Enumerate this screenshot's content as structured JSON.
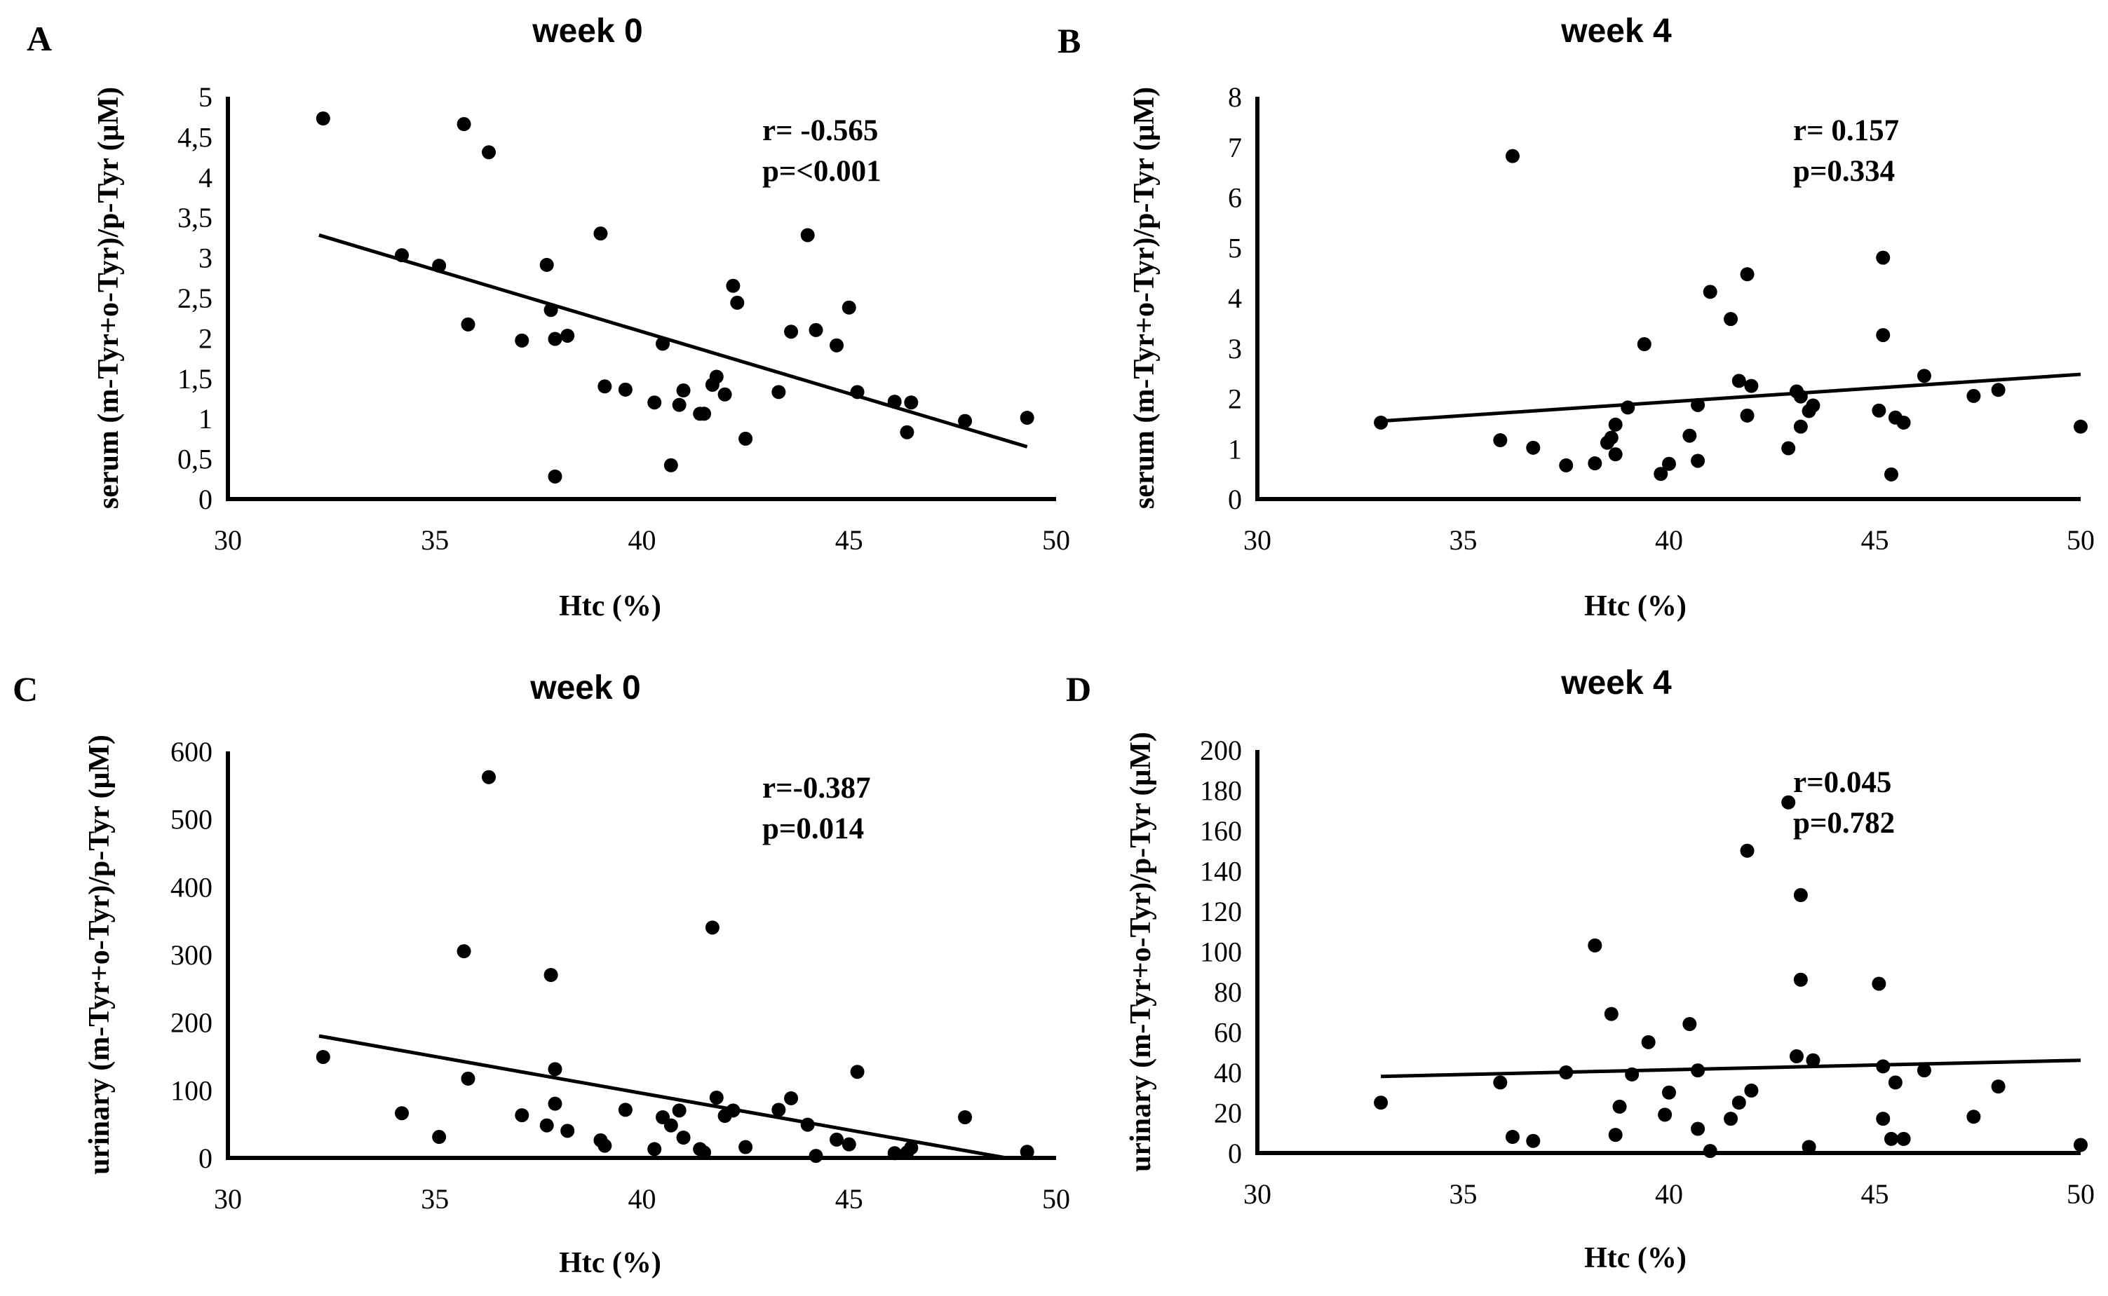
{
  "chart_data": [
    {
      "type": "scatter",
      "letter": "A",
      "title": "week 0",
      "xlabel": "Htc (%)",
      "ylabel": "serum (m-Tyr+o-Tyr)/p-Tyr  (μM)",
      "xlim": [
        30,
        50
      ],
      "ylim": [
        0,
        5
      ],
      "xticks": [
        30,
        35,
        40,
        45,
        50
      ],
      "yticks": [
        0,
        0.5,
        1,
        1.5,
        2,
        2.5,
        3,
        3.5,
        4,
        4.5,
        5
      ],
      "ytick_labels": [
        "0",
        "0,5",
        "1",
        "1,5",
        "2",
        "2,5",
        "3",
        "3,5",
        "4",
        "4,5",
        "5"
      ],
      "stats": [
        "r= -0.565",
        "p=<0.001"
      ],
      "trendline": {
        "x": [
          32.2,
          49.3
        ],
        "y": [
          3.28,
          0.65
        ]
      },
      "points": [
        {
          "x": 32.3,
          "y": 4.73
        },
        {
          "x": 34.2,
          "y": 3.03
        },
        {
          "x": 35.1,
          "y": 2.9
        },
        {
          "x": 35.7,
          "y": 4.66
        },
        {
          "x": 35.8,
          "y": 2.17
        },
        {
          "x": 36.3,
          "y": 4.31
        },
        {
          "x": 37.1,
          "y": 1.97
        },
        {
          "x": 37.7,
          "y": 2.91
        },
        {
          "x": 37.8,
          "y": 2.35
        },
        {
          "x": 37.9,
          "y": 0.28
        },
        {
          "x": 37.9,
          "y": 1.99
        },
        {
          "x": 38.2,
          "y": 2.03
        },
        {
          "x": 39.0,
          "y": 3.3
        },
        {
          "x": 39.1,
          "y": 1.4
        },
        {
          "x": 39.6,
          "y": 1.36
        },
        {
          "x": 40.3,
          "y": 1.2
        },
        {
          "x": 40.5,
          "y": 1.93
        },
        {
          "x": 40.7,
          "y": 0.42
        },
        {
          "x": 40.9,
          "y": 1.17
        },
        {
          "x": 41.0,
          "y": 1.35
        },
        {
          "x": 41.4,
          "y": 1.06
        },
        {
          "x": 41.5,
          "y": 1.06
        },
        {
          "x": 41.7,
          "y": 1.42
        },
        {
          "x": 41.8,
          "y": 1.52
        },
        {
          "x": 42.0,
          "y": 1.3
        },
        {
          "x": 42.2,
          "y": 2.65
        },
        {
          "x": 42.3,
          "y": 2.44
        },
        {
          "x": 42.5,
          "y": 0.75
        },
        {
          "x": 43.3,
          "y": 1.33
        },
        {
          "x": 43.6,
          "y": 2.08
        },
        {
          "x": 44.0,
          "y": 3.28
        },
        {
          "x": 44.2,
          "y": 2.1
        },
        {
          "x": 44.7,
          "y": 1.91
        },
        {
          "x": 45.0,
          "y": 2.38
        },
        {
          "x": 45.2,
          "y": 1.33
        },
        {
          "x": 46.1,
          "y": 1.21
        },
        {
          "x": 46.4,
          "y": 0.83
        },
        {
          "x": 46.5,
          "y": 1.2
        },
        {
          "x": 47.8,
          "y": 0.97
        },
        {
          "x": 49.3,
          "y": 1.01
        }
      ]
    },
    {
      "type": "scatter",
      "letter": "B",
      "title": "week 4",
      "xlabel": "Htc (%)",
      "ylabel": "serum (m-Tyr+o-Tyr)/p-Tyr  (μM)",
      "xlim": [
        30,
        50
      ],
      "ylim": [
        0,
        8
      ],
      "xticks": [
        30,
        35,
        40,
        45,
        50
      ],
      "yticks": [
        0,
        1,
        2,
        3,
        4,
        5,
        6,
        7,
        8
      ],
      "ytick_labels": [
        "0",
        "1",
        "2",
        "3",
        "4",
        "5",
        "6",
        "7",
        "8"
      ],
      "stats": [
        "r= 0.157",
        "p=0.334"
      ],
      "trendline": {
        "x": [
          33.0,
          50.0
        ],
        "y": [
          1.55,
          2.48
        ]
      },
      "points": [
        {
          "x": 33.0,
          "y": 1.52
        },
        {
          "x": 35.9,
          "y": 1.17
        },
        {
          "x": 36.2,
          "y": 6.82
        },
        {
          "x": 36.7,
          "y": 1.02
        },
        {
          "x": 37.5,
          "y": 0.67
        },
        {
          "x": 38.2,
          "y": 0.71
        },
        {
          "x": 38.5,
          "y": 1.12
        },
        {
          "x": 38.6,
          "y": 1.22
        },
        {
          "x": 38.7,
          "y": 0.89
        },
        {
          "x": 38.7,
          "y": 1.48
        },
        {
          "x": 39.0,
          "y": 1.82
        },
        {
          "x": 39.4,
          "y": 3.08
        },
        {
          "x": 39.8,
          "y": 0.5
        },
        {
          "x": 40.0,
          "y": 0.7
        },
        {
          "x": 40.5,
          "y": 1.26
        },
        {
          "x": 40.7,
          "y": 0.76
        },
        {
          "x": 40.7,
          "y": 1.87
        },
        {
          "x": 41.0,
          "y": 4.12
        },
        {
          "x": 41.5,
          "y": 3.58
        },
        {
          "x": 41.7,
          "y": 2.35
        },
        {
          "x": 41.9,
          "y": 1.66
        },
        {
          "x": 41.9,
          "y": 4.47
        },
        {
          "x": 42.0,
          "y": 2.25
        },
        {
          "x": 42.9,
          "y": 1.01
        },
        {
          "x": 43.1,
          "y": 2.14
        },
        {
          "x": 43.2,
          "y": 2.04
        },
        {
          "x": 43.2,
          "y": 1.44
        },
        {
          "x": 43.4,
          "y": 1.75
        },
        {
          "x": 43.5,
          "y": 1.86
        },
        {
          "x": 45.1,
          "y": 1.76
        },
        {
          "x": 45.2,
          "y": 3.26
        },
        {
          "x": 45.2,
          "y": 4.8
        },
        {
          "x": 45.4,
          "y": 0.49
        },
        {
          "x": 45.5,
          "y": 1.62
        },
        {
          "x": 45.7,
          "y": 1.52
        },
        {
          "x": 46.2,
          "y": 2.45
        },
        {
          "x": 47.4,
          "y": 2.05
        },
        {
          "x": 48.0,
          "y": 2.17
        },
        {
          "x": 50.0,
          "y": 1.44
        }
      ]
    },
    {
      "type": "scatter",
      "letter": "C",
      "title": "week 0",
      "xlabel": "Htc (%)",
      "ylabel": "urinary (m-Tyr+o-Tyr)/p-Tyr  (μM)",
      "xlim": [
        30,
        50
      ],
      "ylim": [
        0,
        600
      ],
      "xticks": [
        30,
        35,
        40,
        45,
        50
      ],
      "yticks": [
        0,
        100,
        200,
        300,
        400,
        500,
        600
      ],
      "ytick_labels": [
        "0",
        "100",
        "200",
        "300",
        "400",
        "500",
        "600"
      ],
      "stats": [
        "r=-0.387",
        "p=0.014"
      ],
      "trendline": {
        "x": [
          32.2,
          48.8
        ],
        "y": [
          180,
          0
        ]
      },
      "points": [
        {
          "x": 32.3,
          "y": 149
        },
        {
          "x": 34.2,
          "y": 66
        },
        {
          "x": 35.1,
          "y": 31
        },
        {
          "x": 35.7,
          "y": 305
        },
        {
          "x": 35.8,
          "y": 117
        },
        {
          "x": 36.3,
          "y": 562
        },
        {
          "x": 37.1,
          "y": 63
        },
        {
          "x": 37.7,
          "y": 48
        },
        {
          "x": 37.8,
          "y": 270
        },
        {
          "x": 37.9,
          "y": 131
        },
        {
          "x": 37.9,
          "y": 80
        },
        {
          "x": 38.2,
          "y": 40
        },
        {
          "x": 39.0,
          "y": 26
        },
        {
          "x": 39.1,
          "y": 18
        },
        {
          "x": 39.6,
          "y": 71
        },
        {
          "x": 40.3,
          "y": 13
        },
        {
          "x": 40.5,
          "y": 60
        },
        {
          "x": 40.7,
          "y": 48
        },
        {
          "x": 40.9,
          "y": 70
        },
        {
          "x": 41.0,
          "y": 30
        },
        {
          "x": 41.4,
          "y": 13
        },
        {
          "x": 41.5,
          "y": 8
        },
        {
          "x": 41.7,
          "y": 340
        },
        {
          "x": 41.8,
          "y": 89
        },
        {
          "x": 42.0,
          "y": 62
        },
        {
          "x": 42.2,
          "y": 70
        },
        {
          "x": 42.5,
          "y": 16
        },
        {
          "x": 43.3,
          "y": 71
        },
        {
          "x": 43.6,
          "y": 88
        },
        {
          "x": 44.0,
          "y": 49
        },
        {
          "x": 44.2,
          "y": 3
        },
        {
          "x": 44.7,
          "y": 27
        },
        {
          "x": 45.0,
          "y": 20
        },
        {
          "x": 45.2,
          "y": 127
        },
        {
          "x": 46.1,
          "y": 7
        },
        {
          "x": 46.4,
          "y": 8
        },
        {
          "x": 46.5,
          "y": 15
        },
        {
          "x": 47.8,
          "y": 60
        },
        {
          "x": 49.3,
          "y": 9
        }
      ]
    },
    {
      "type": "scatter",
      "letter": "D",
      "title": "week 4",
      "xlabel": "Htc (%)",
      "ylabel": "urinary (m-Tyr+o-Tyr)/p-Tyr  (μM)",
      "xlim": [
        30,
        50
      ],
      "ylim": [
        0,
        200
      ],
      "xticks": [
        30,
        35,
        40,
        45,
        50
      ],
      "yticks": [
        0,
        20,
        40,
        60,
        80,
        100,
        120,
        140,
        160,
        180,
        200
      ],
      "ytick_labels": [
        "0",
        "20",
        "40",
        "60",
        "80",
        "100",
        "120",
        "140",
        "160",
        "180",
        "200"
      ],
      "stats": [
        "r=0.045",
        "p=0.782"
      ],
      "trendline": {
        "x": [
          33.0,
          50.0
        ],
        "y": [
          38,
          46
        ]
      },
      "points": [
        {
          "x": 33.0,
          "y": 25
        },
        {
          "x": 35.9,
          "y": 35
        },
        {
          "x": 36.2,
          "y": 8
        },
        {
          "x": 36.7,
          "y": 6
        },
        {
          "x": 37.5,
          "y": 40
        },
        {
          "x": 38.2,
          "y": 103
        },
        {
          "x": 38.6,
          "y": 69
        },
        {
          "x": 38.7,
          "y": 9
        },
        {
          "x": 38.8,
          "y": 23
        },
        {
          "x": 39.1,
          "y": 39
        },
        {
          "x": 39.5,
          "y": 55
        },
        {
          "x": 39.9,
          "y": 19
        },
        {
          "x": 40.0,
          "y": 30
        },
        {
          "x": 40.5,
          "y": 64
        },
        {
          "x": 40.7,
          "y": 41
        },
        {
          "x": 40.7,
          "y": 12
        },
        {
          "x": 41.0,
          "y": 1
        },
        {
          "x": 41.5,
          "y": 17
        },
        {
          "x": 41.7,
          "y": 25
        },
        {
          "x": 41.9,
          "y": 150
        },
        {
          "x": 42.0,
          "y": 31
        },
        {
          "x": 42.9,
          "y": 174
        },
        {
          "x": 43.1,
          "y": 48
        },
        {
          "x": 43.2,
          "y": 86
        },
        {
          "x": 43.2,
          "y": 128
        },
        {
          "x": 43.4,
          "y": 3
        },
        {
          "x": 43.5,
          "y": 46
        },
        {
          "x": 45.1,
          "y": 84
        },
        {
          "x": 45.2,
          "y": 43
        },
        {
          "x": 45.2,
          "y": 17
        },
        {
          "x": 45.4,
          "y": 7
        },
        {
          "x": 45.5,
          "y": 35
        },
        {
          "x": 45.7,
          "y": 7
        },
        {
          "x": 46.2,
          "y": 41
        },
        {
          "x": 47.4,
          "y": 18
        },
        {
          "x": 48.0,
          "y": 33
        },
        {
          "x": 50.0,
          "y": 4
        }
      ]
    }
  ]
}
